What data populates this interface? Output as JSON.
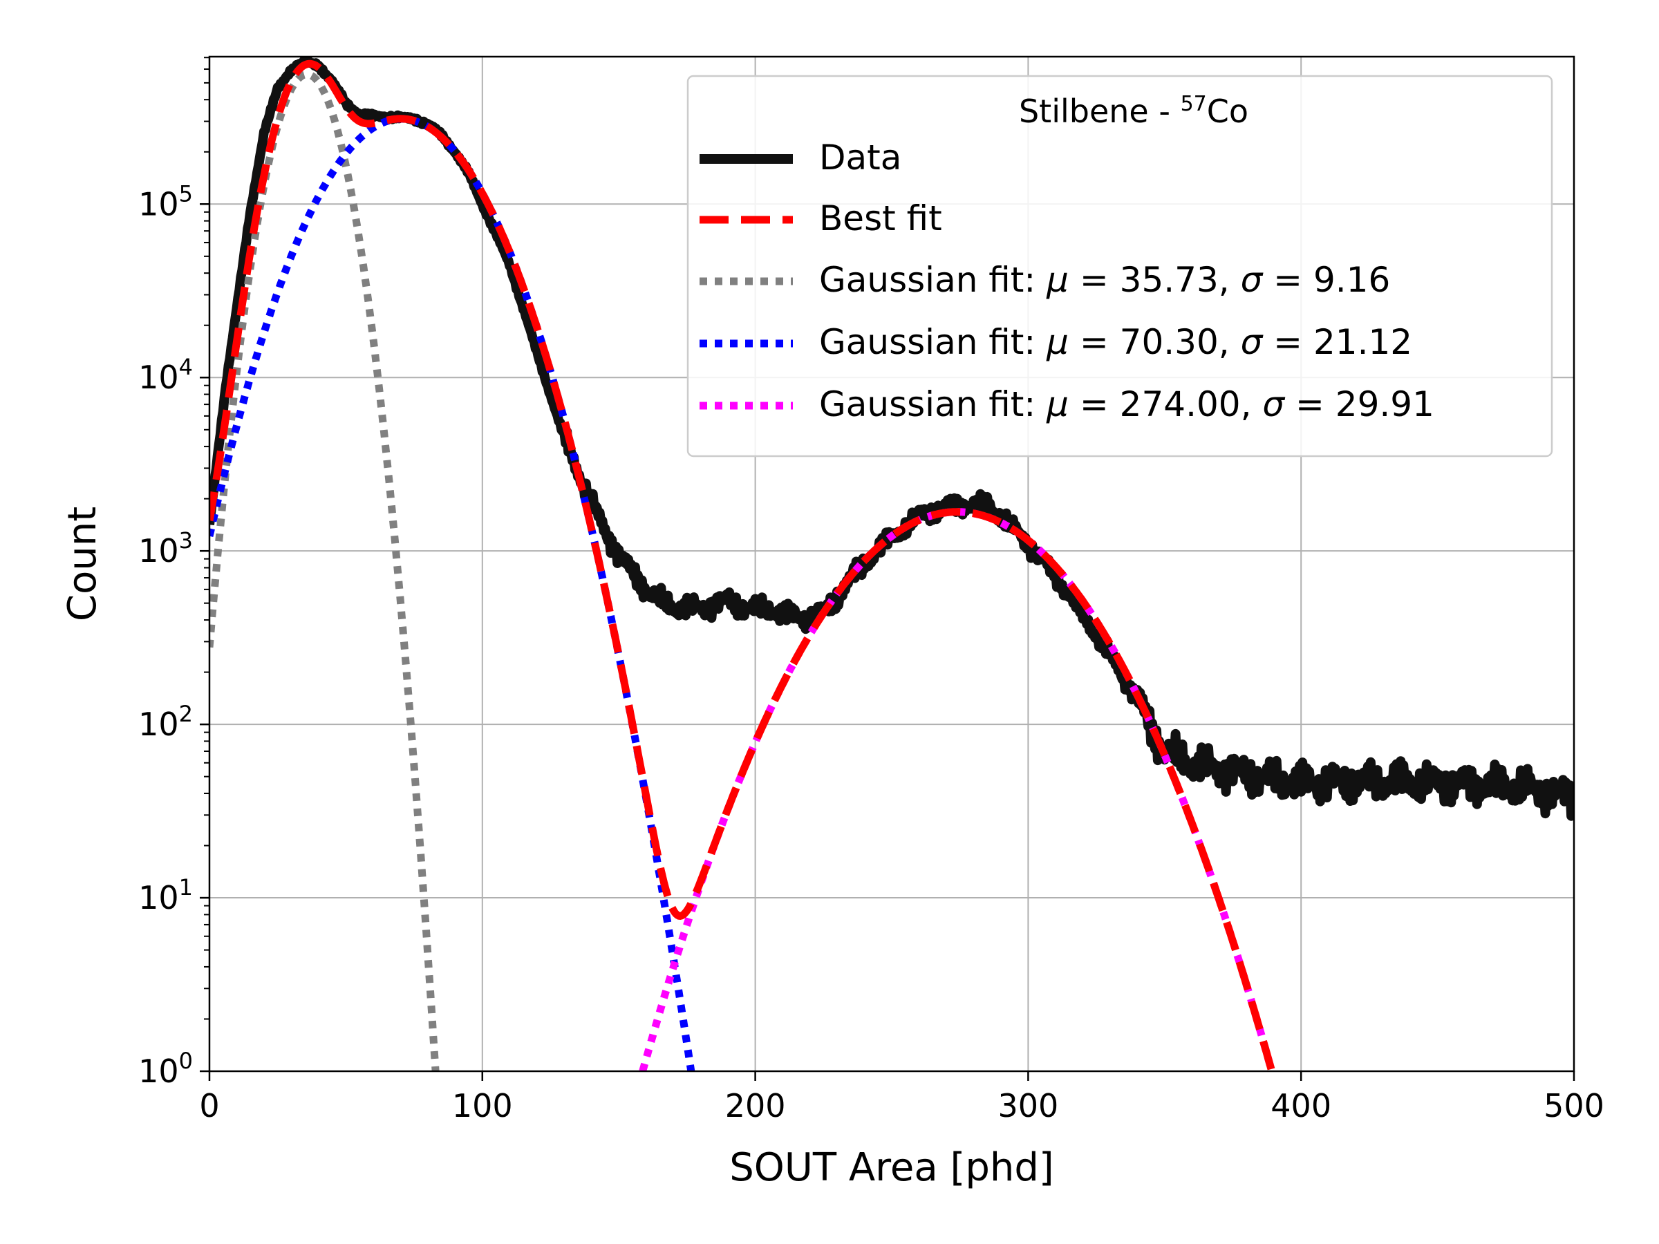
{
  "chart_data": {
    "type": "line",
    "title": "",
    "xlabel": "SOUT Area [phd]",
    "ylabel": "Count",
    "xlim": [
      0,
      500
    ],
    "ylim_log10": [
      0,
      5.85
    ],
    "yscale": "log",
    "grid": true,
    "x_ticks": [
      0,
      100,
      200,
      300,
      400,
      500
    ],
    "x_tick_labels": [
      "0",
      "100",
      "200",
      "300",
      "400",
      "500"
    ],
    "y_ticks_exp": [
      0,
      1,
      2,
      3,
      4,
      5
    ],
    "y_tick_base": "10",
    "y_tick_exponents": [
      "0",
      "1",
      "2",
      "3",
      "4",
      "5"
    ],
    "legend": {
      "location": "top-right",
      "title_prefix": "Stilbene - ",
      "title_isotope_mass": "57",
      "title_element": "Co",
      "entries": [
        {
          "key": "data",
          "label": "Data",
          "color": "#111111",
          "style": "solid"
        },
        {
          "key": "best",
          "label": "Best fit",
          "color": "#ff0000",
          "style": "dashed"
        },
        {
          "key": "g1",
          "label_prefix": "Gaussian fit: ",
          "mu_symbol": "μ",
          "eq1": " = 35.73, ",
          "sigma_symbol": "σ",
          "eq2": " = 9.16",
          "color": "#808080",
          "style": "dotted"
        },
        {
          "key": "g2",
          "label_prefix": "Gaussian fit: ",
          "mu_symbol": "μ",
          "eq1": " = 70.30, ",
          "sigma_symbol": "σ",
          "eq2": " = 21.12",
          "color": "#0000ff",
          "style": "dotted"
        },
        {
          "key": "g3",
          "label_prefix": "Gaussian fit: ",
          "mu_symbol": "μ",
          "eq1": " = 274.00, ",
          "sigma_symbol": "σ",
          "eq2": " = 29.91",
          "color": "#ff00ff",
          "style": "dotted"
        }
      ]
    },
    "gaussians": [
      {
        "name": "Gaussian fit 1",
        "amplitude": 560000,
        "mu": 35.73,
        "sigma": 9.16,
        "color": "#808080"
      },
      {
        "name": "Gaussian fit 2",
        "amplitude": 310000,
        "mu": 70.3,
        "sigma": 21.12,
        "color": "#0000ff"
      },
      {
        "name": "Gaussian fit 3",
        "amplitude": 1680,
        "mu": 274.0,
        "sigma": 29.91,
        "color": "#ff00ff"
      }
    ],
    "data_series": {
      "name": "Data",
      "x": [
        0,
        3,
        6,
        10,
        15,
        20,
        25,
        30,
        35,
        40,
        45,
        50,
        55,
        60,
        65,
        70,
        75,
        80,
        85,
        90,
        95,
        100,
        110,
        120,
        130,
        140,
        145,
        150,
        155,
        160,
        165,
        170,
        175,
        180,
        185,
        190,
        195,
        200,
        205,
        210,
        215,
        220,
        225,
        230,
        240,
        250,
        260,
        270,
        280,
        285,
        290,
        300,
        310,
        320,
        330,
        340,
        345,
        350,
        360,
        370,
        380,
        390,
        400,
        420,
        440,
        460,
        480,
        500
      ],
      "y": [
        1400,
        3500,
        9000,
        25000,
        90000,
        260000,
        460000,
        600000,
        660000,
        630000,
        510000,
        380000,
        330000,
        320000,
        320000,
        315000,
        310000,
        290000,
        250000,
        200000,
        150000,
        100000,
        45000,
        14000,
        4500,
        1900,
        1300,
        950,
        750,
        600,
        520,
        480,
        470,
        470,
        490,
        520,
        480,
        460,
        470,
        430,
        420,
        410,
        440,
        550,
        850,
        1200,
        1600,
        1800,
        1850,
        1850,
        1600,
        1100,
        720,
        430,
        250,
        140,
        95,
        70,
        60,
        55,
        52,
        48,
        46,
        47,
        47,
        45,
        44,
        38
      ]
    }
  }
}
